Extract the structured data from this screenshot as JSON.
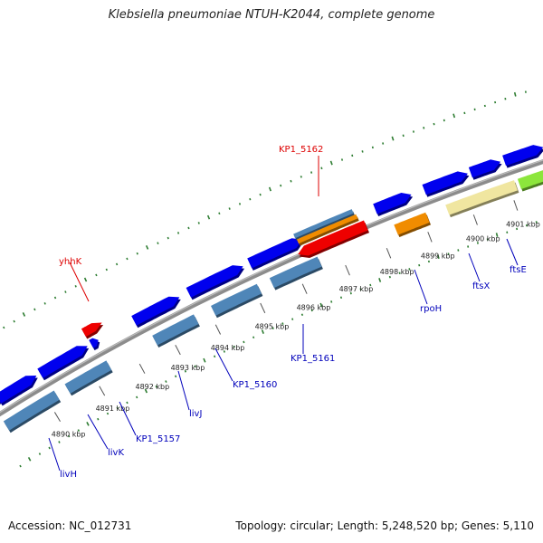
{
  "header": {
    "title": "Klebsiella pneumoniae NTUH-K2044, complete genome"
  },
  "footer": {
    "accession": "Accession: NC_012731",
    "stats": "Topology: circular; Length: 5,248,520 bp; Genes: 5,110"
  },
  "map": {
    "ticks": [
      "4890 kbp",
      "4891 kbp",
      "4892 kbp",
      "4893 kbp",
      "4894 kbp",
      "4895 kbp",
      "4896 kbp",
      "4897 kbp",
      "4898 kbp",
      "4899 kbp",
      "4900 kbp",
      "4901 kbp"
    ],
    "gene_labels": [
      "yhhK",
      "KP1_5162",
      "livH",
      "livK",
      "KP1_5157",
      "livJ",
      "KP1_5160",
      "KP1_5161",
      "rpoH",
      "ftsX",
      "ftsE"
    ]
  },
  "colors": {
    "forward_cds": "#0000ee",
    "reverse_cds": "#4f86b8",
    "highlight": "#ee0000",
    "orange_feature": "#f08c00",
    "khaki_feature": "#f0e6a0",
    "green_feature": "#8ce63c",
    "backbone": "#8c8c8c",
    "tick_marks": "#2e7d32",
    "label_blue": "#0000bb",
    "label_red": "#dd0000"
  }
}
